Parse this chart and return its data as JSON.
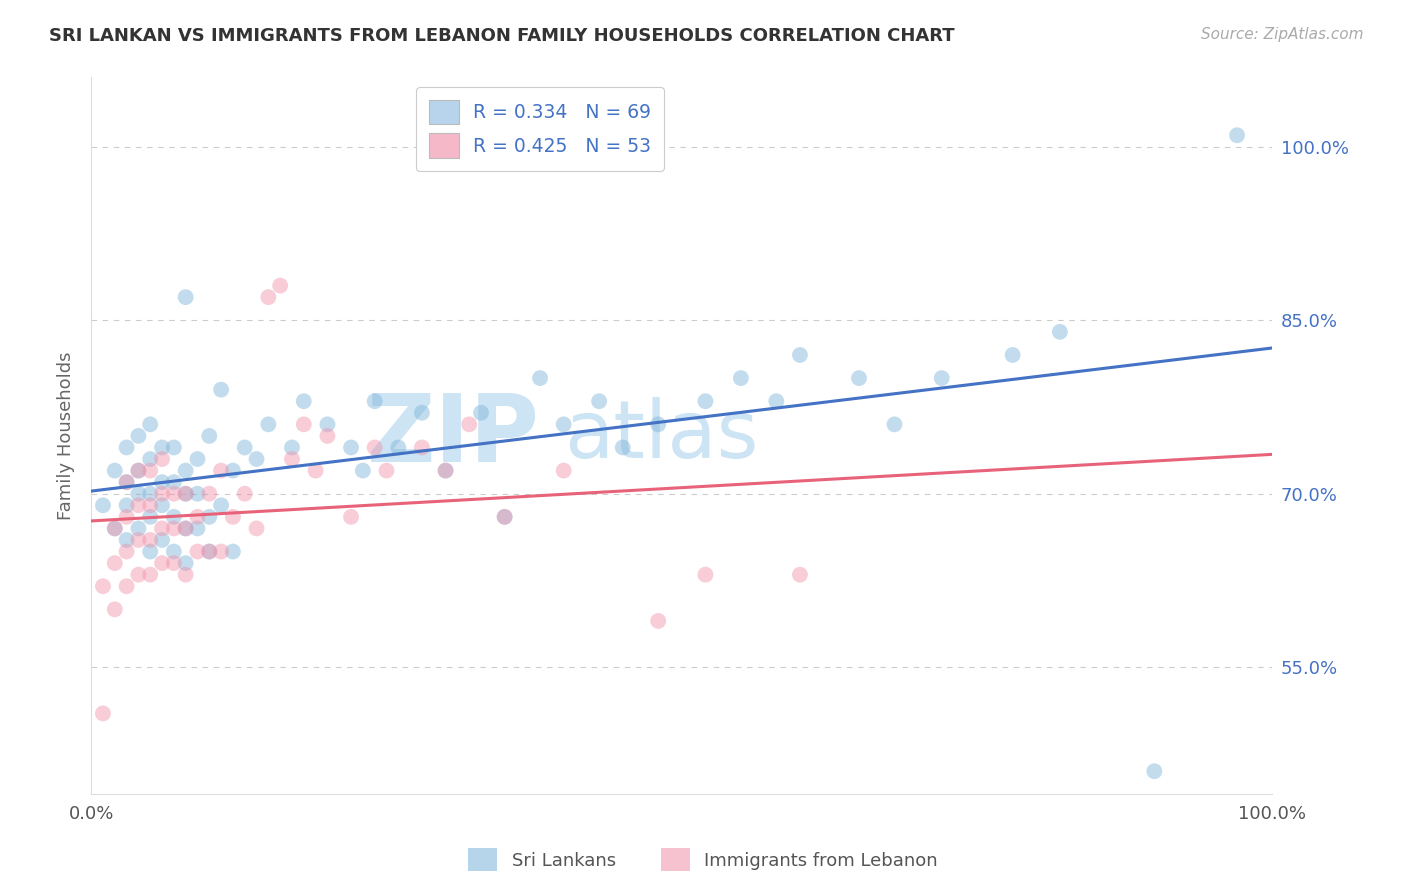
{
  "title": "SRI LANKAN VS IMMIGRANTS FROM LEBANON FAMILY HOUSEHOLDS CORRELATION CHART",
  "source": "Source: ZipAtlas.com",
  "ylabel": "Family Households",
  "xlim": [
    0.0,
    1.0
  ],
  "ylim": [
    0.44,
    1.06
  ],
  "yticks": [
    0.55,
    0.7,
    0.85,
    1.0
  ],
  "ytick_labels": [
    "55.0%",
    "70.0%",
    "85.0%",
    "100.0%"
  ],
  "legend_entries": [
    {
      "label": "R = 0.334   N = 69",
      "color": "#b8d4ed"
    },
    {
      "label": "R = 0.425   N = 53",
      "color": "#f5b8c8"
    }
  ],
  "series1_label": "Sri Lankans",
  "series2_label": "Immigrants from Lebanon",
  "series1_color": "#7ab3d9",
  "series2_color": "#f090a8",
  "line1_color": "#4472c4",
  "line2_color": "#e8637a",
  "background_color": "#ffffff",
  "grid_color": "#cccccc",
  "title_color": "#333333",
  "source_color": "#aaaaaa",
  "watermark_color": "#cce4f4",
  "sri_lankan_x": [
    0.01,
    0.02,
    0.02,
    0.03,
    0.03,
    0.03,
    0.03,
    0.04,
    0.04,
    0.04,
    0.04,
    0.05,
    0.05,
    0.05,
    0.05,
    0.05,
    0.06,
    0.06,
    0.06,
    0.06,
    0.07,
    0.07,
    0.07,
    0.07,
    0.08,
    0.08,
    0.08,
    0.08,
    0.08,
    0.09,
    0.09,
    0.09,
    0.1,
    0.1,
    0.1,
    0.11,
    0.11,
    0.12,
    0.12,
    0.13,
    0.14,
    0.15,
    0.17,
    0.18,
    0.2,
    0.22,
    0.23,
    0.24,
    0.26,
    0.28,
    0.3,
    0.33,
    0.35,
    0.38,
    0.4,
    0.43,
    0.45,
    0.48,
    0.52,
    0.55,
    0.58,
    0.6,
    0.65,
    0.68,
    0.72,
    0.78,
    0.82,
    0.9,
    0.97
  ],
  "sri_lankan_y": [
    0.69,
    0.67,
    0.72,
    0.66,
    0.69,
    0.71,
    0.74,
    0.67,
    0.7,
    0.72,
    0.75,
    0.65,
    0.68,
    0.7,
    0.73,
    0.76,
    0.66,
    0.69,
    0.71,
    0.74,
    0.65,
    0.68,
    0.71,
    0.74,
    0.64,
    0.67,
    0.7,
    0.72,
    0.87,
    0.67,
    0.7,
    0.73,
    0.65,
    0.68,
    0.75,
    0.69,
    0.79,
    0.65,
    0.72,
    0.74,
    0.73,
    0.76,
    0.74,
    0.78,
    0.76,
    0.74,
    0.72,
    0.78,
    0.74,
    0.77,
    0.72,
    0.77,
    0.68,
    0.8,
    0.76,
    0.78,
    0.74,
    0.76,
    0.78,
    0.8,
    0.78,
    0.82,
    0.8,
    0.76,
    0.8,
    0.82,
    0.84,
    0.46,
    1.01
  ],
  "lebanon_x": [
    0.01,
    0.01,
    0.02,
    0.02,
    0.02,
    0.03,
    0.03,
    0.03,
    0.03,
    0.04,
    0.04,
    0.04,
    0.04,
    0.05,
    0.05,
    0.05,
    0.05,
    0.06,
    0.06,
    0.06,
    0.06,
    0.07,
    0.07,
    0.07,
    0.08,
    0.08,
    0.08,
    0.09,
    0.09,
    0.1,
    0.1,
    0.11,
    0.11,
    0.12,
    0.13,
    0.14,
    0.15,
    0.16,
    0.17,
    0.18,
    0.19,
    0.2,
    0.22,
    0.24,
    0.25,
    0.28,
    0.3,
    0.32,
    0.35,
    0.4,
    0.48,
    0.52,
    0.6
  ],
  "lebanon_y": [
    0.51,
    0.62,
    0.6,
    0.64,
    0.67,
    0.62,
    0.65,
    0.68,
    0.71,
    0.63,
    0.66,
    0.69,
    0.72,
    0.63,
    0.66,
    0.69,
    0.72,
    0.64,
    0.67,
    0.7,
    0.73,
    0.64,
    0.67,
    0.7,
    0.63,
    0.67,
    0.7,
    0.65,
    0.68,
    0.65,
    0.7,
    0.65,
    0.72,
    0.68,
    0.7,
    0.67,
    0.87,
    0.88,
    0.73,
    0.76,
    0.72,
    0.75,
    0.68,
    0.74,
    0.72,
    0.74,
    0.72,
    0.76,
    0.68,
    0.72,
    0.59,
    0.63,
    0.63
  ]
}
